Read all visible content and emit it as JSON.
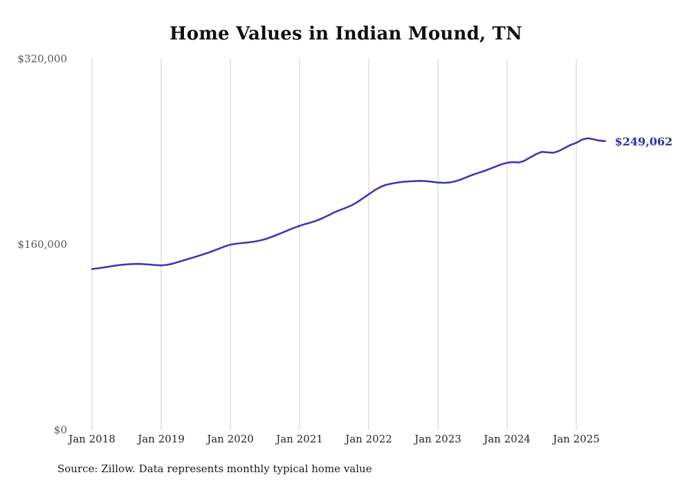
{
  "chart": {
    "title": "Home Values in Indian Mound, TN",
    "annotation": "$249,062",
    "source": "Source: Zillow. Data represents monthly typical home value",
    "colors": {
      "line": "#3d37b0",
      "annotation": "#322da6",
      "gridline": "#cccccc"
    }
  },
  "chart_data": {
    "type": "line",
    "title": "Home Values in Indian Mound, TN",
    "xlabel": "",
    "ylabel": "",
    "ylim": [
      0,
      320000
    ],
    "grid": "vertical-only",
    "legend": "none",
    "x_start": "2018-01",
    "x_interval": "monthly",
    "x_end": "2025-06",
    "series_name": "Typical home value ($)",
    "values": [
      138800,
      139400,
      140100,
      140900,
      141700,
      142300,
      142800,
      143100,
      143200,
      143000,
      142600,
      142200,
      141900,
      142400,
      143400,
      144900,
      146400,
      147900,
      149400,
      151000,
      152600,
      154400,
      156300,
      158200,
      159800,
      160600,
      161200,
      161700,
      162300,
      163200,
      164500,
      166200,
      168100,
      170100,
      172200,
      174200,
      176000,
      177600,
      179000,
      180600,
      182700,
      185100,
      187600,
      189700,
      191500,
      193600,
      196400,
      199800,
      203200,
      206600,
      209500,
      211400,
      212500,
      213400,
      214000,
      214300,
      214600,
      214800,
      214500,
      214000,
      213400,
      213100,
      213400,
      214400,
      216000,
      218000,
      220000,
      221700,
      223300,
      225200,
      227100,
      229000,
      230400,
      231000,
      230600,
      232100,
      235000,
      237800,
      239800,
      239400,
      239000,
      240600,
      243200,
      245800,
      247600,
      250400,
      251600,
      250600,
      249500,
      249062
    ],
    "last_value_label": "$249,062",
    "y_ticks": [
      {
        "label": "$0",
        "value": 0
      },
      {
        "label": "$160,000",
        "value": 160000
      },
      {
        "label": "$320,000",
        "value": 320000
      }
    ],
    "x_ticks": [
      {
        "label": "Jan 2018",
        "month_index": 0
      },
      {
        "label": "Jan 2019",
        "month_index": 12
      },
      {
        "label": "Jan 2020",
        "month_index": 24
      },
      {
        "label": "Jan 2021",
        "month_index": 36
      },
      {
        "label": "Jan 2022",
        "month_index": 48
      },
      {
        "label": "Jan 2023",
        "month_index": 60
      },
      {
        "label": "Jan 2024",
        "month_index": 72
      },
      {
        "label": "Jan 2025",
        "month_index": 84
      }
    ]
  }
}
